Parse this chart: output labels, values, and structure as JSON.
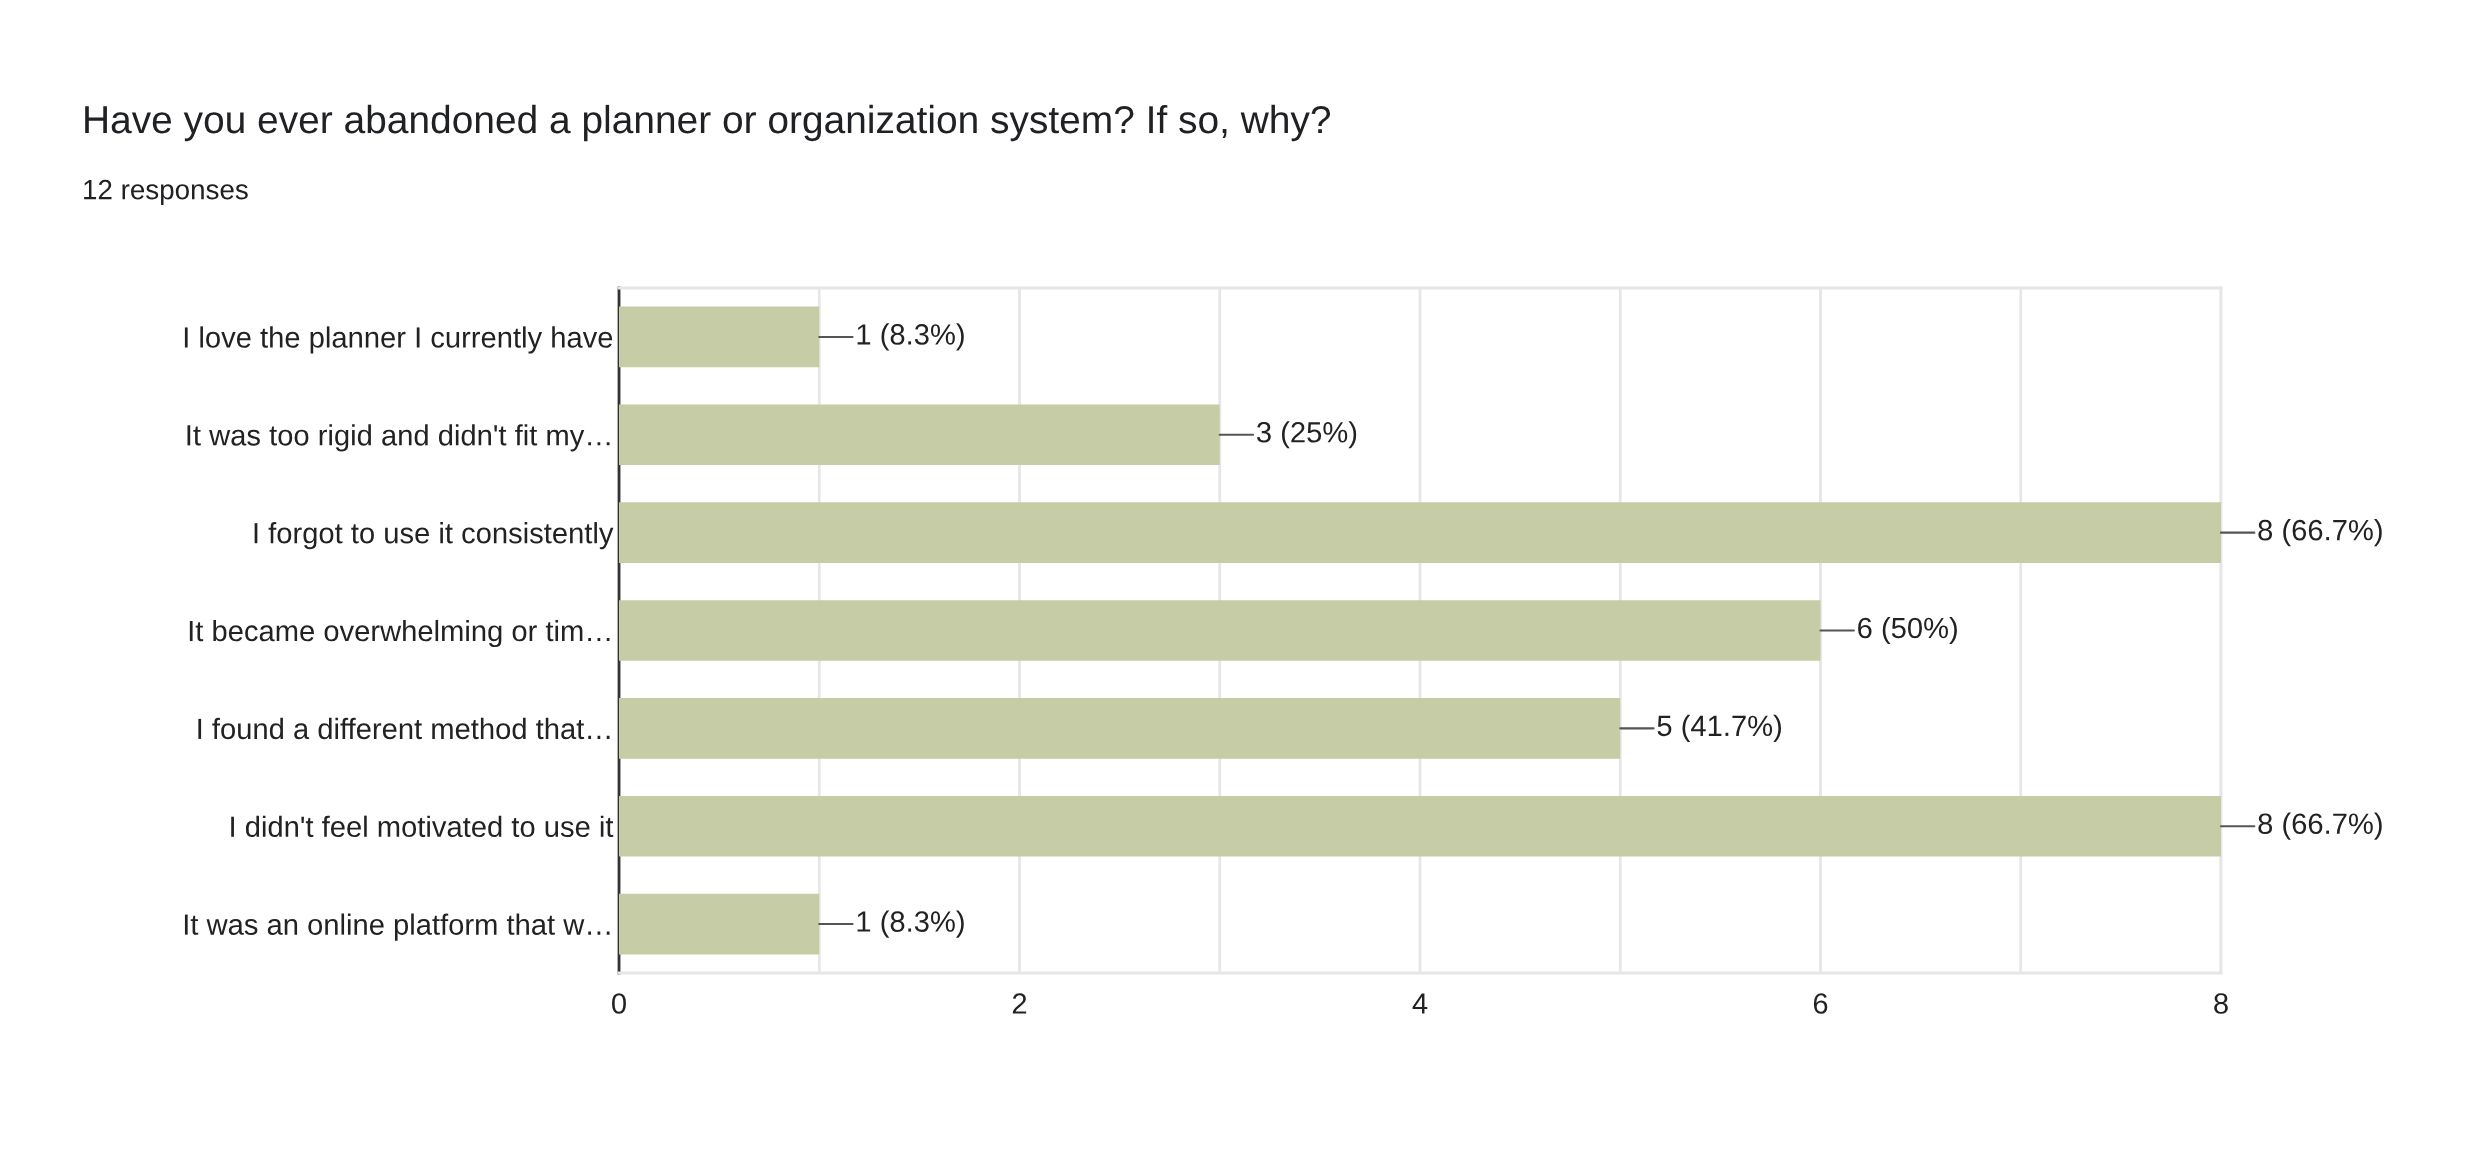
{
  "chart_data": {
    "type": "bar",
    "orientation": "horizontal",
    "title": "Have you ever abandoned a planner or organization system? If so, why?",
    "subtitle": "12 responses",
    "categories": [
      "I love the planner I currently have",
      "It was too rigid and didn't fit my…",
      "I forgot to use it consistently",
      "It became overwhelming or tim…",
      "I found a different method that…",
      "I didn't feel motivated to use it",
      "It was an online platform that w…"
    ],
    "values": [
      1,
      3,
      8,
      6,
      5,
      8,
      1
    ],
    "value_labels": [
      "1 (8.3%)",
      "3 (25%)",
      "8 (66.7%)",
      "6 (50%)",
      "5 (41.7%)",
      "8 (66.7%)",
      "1 (8.3%)"
    ],
    "color": "#c5cca6",
    "xlim": [
      0,
      8
    ],
    "xticks": [
      0,
      {
        "value": 1,
        "label": null
      },
      2,
      {
        "value": 3,
        "label": null
      },
      4,
      {
        "value": 5,
        "label": null
      },
      6,
      {
        "value": 7,
        "label": null
      },
      8
    ],
    "grid": "x",
    "legend": false
  }
}
